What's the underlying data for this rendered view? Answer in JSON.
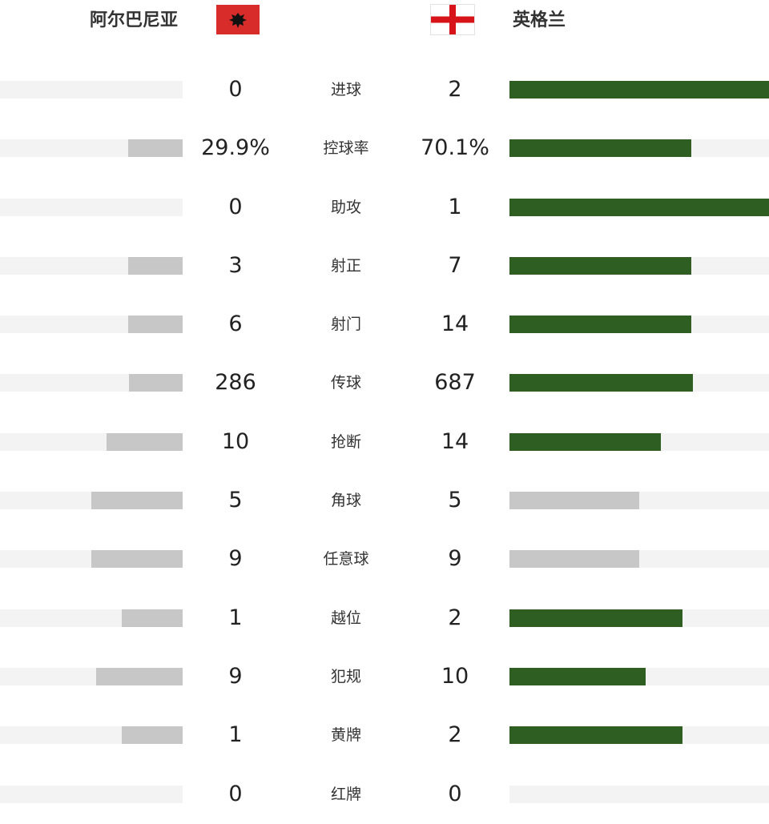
{
  "header": {
    "home_team": "阿尔巴尼亚",
    "away_team": "英格兰",
    "home_flag_icon": "albania-flag-icon",
    "away_flag_icon": "england-flag-icon"
  },
  "colors": {
    "home_bar": "#c7c7c7",
    "away_bar_leading": "#2e5e22",
    "away_bar_tied": "#c7c7c7",
    "track": "#f3f3f3"
  },
  "stats": [
    {
      "label": "进球",
      "home": "0",
      "away": "2",
      "home_fraction": 0.0,
      "away_fraction": 1.0,
      "away_leading": true
    },
    {
      "label": "控球率",
      "home": "29.9%",
      "away": "70.1%",
      "home_fraction": 0.299,
      "away_fraction": 0.701,
      "away_leading": true
    },
    {
      "label": "助攻",
      "home": "0",
      "away": "1",
      "home_fraction": 0.0,
      "away_fraction": 1.0,
      "away_leading": true
    },
    {
      "label": "射正",
      "home": "3",
      "away": "7",
      "home_fraction": 0.3,
      "away_fraction": 0.7,
      "away_leading": true
    },
    {
      "label": "射门",
      "home": "6",
      "away": "14",
      "home_fraction": 0.3,
      "away_fraction": 0.7,
      "away_leading": true
    },
    {
      "label": "传球",
      "home": "286",
      "away": "687",
      "home_fraction": 0.294,
      "away_fraction": 0.706,
      "away_leading": true
    },
    {
      "label": "抢断",
      "home": "10",
      "away": "14",
      "home_fraction": 0.417,
      "away_fraction": 0.583,
      "away_leading": true
    },
    {
      "label": "角球",
      "home": "5",
      "away": "5",
      "home_fraction": 0.5,
      "away_fraction": 0.5,
      "away_leading": false
    },
    {
      "label": "任意球",
      "home": "9",
      "away": "9",
      "home_fraction": 0.5,
      "away_fraction": 0.5,
      "away_leading": false
    },
    {
      "label": "越位",
      "home": "1",
      "away": "2",
      "home_fraction": 0.333,
      "away_fraction": 0.667,
      "away_leading": true
    },
    {
      "label": "犯规",
      "home": "9",
      "away": "10",
      "home_fraction": 0.474,
      "away_fraction": 0.526,
      "away_leading": true
    },
    {
      "label": "黄牌",
      "home": "1",
      "away": "2",
      "home_fraction": 0.333,
      "away_fraction": 0.667,
      "away_leading": true
    },
    {
      "label": "红牌",
      "home": "0",
      "away": "0",
      "home_fraction": 0.0,
      "away_fraction": 0.0,
      "away_leading": false
    }
  ]
}
